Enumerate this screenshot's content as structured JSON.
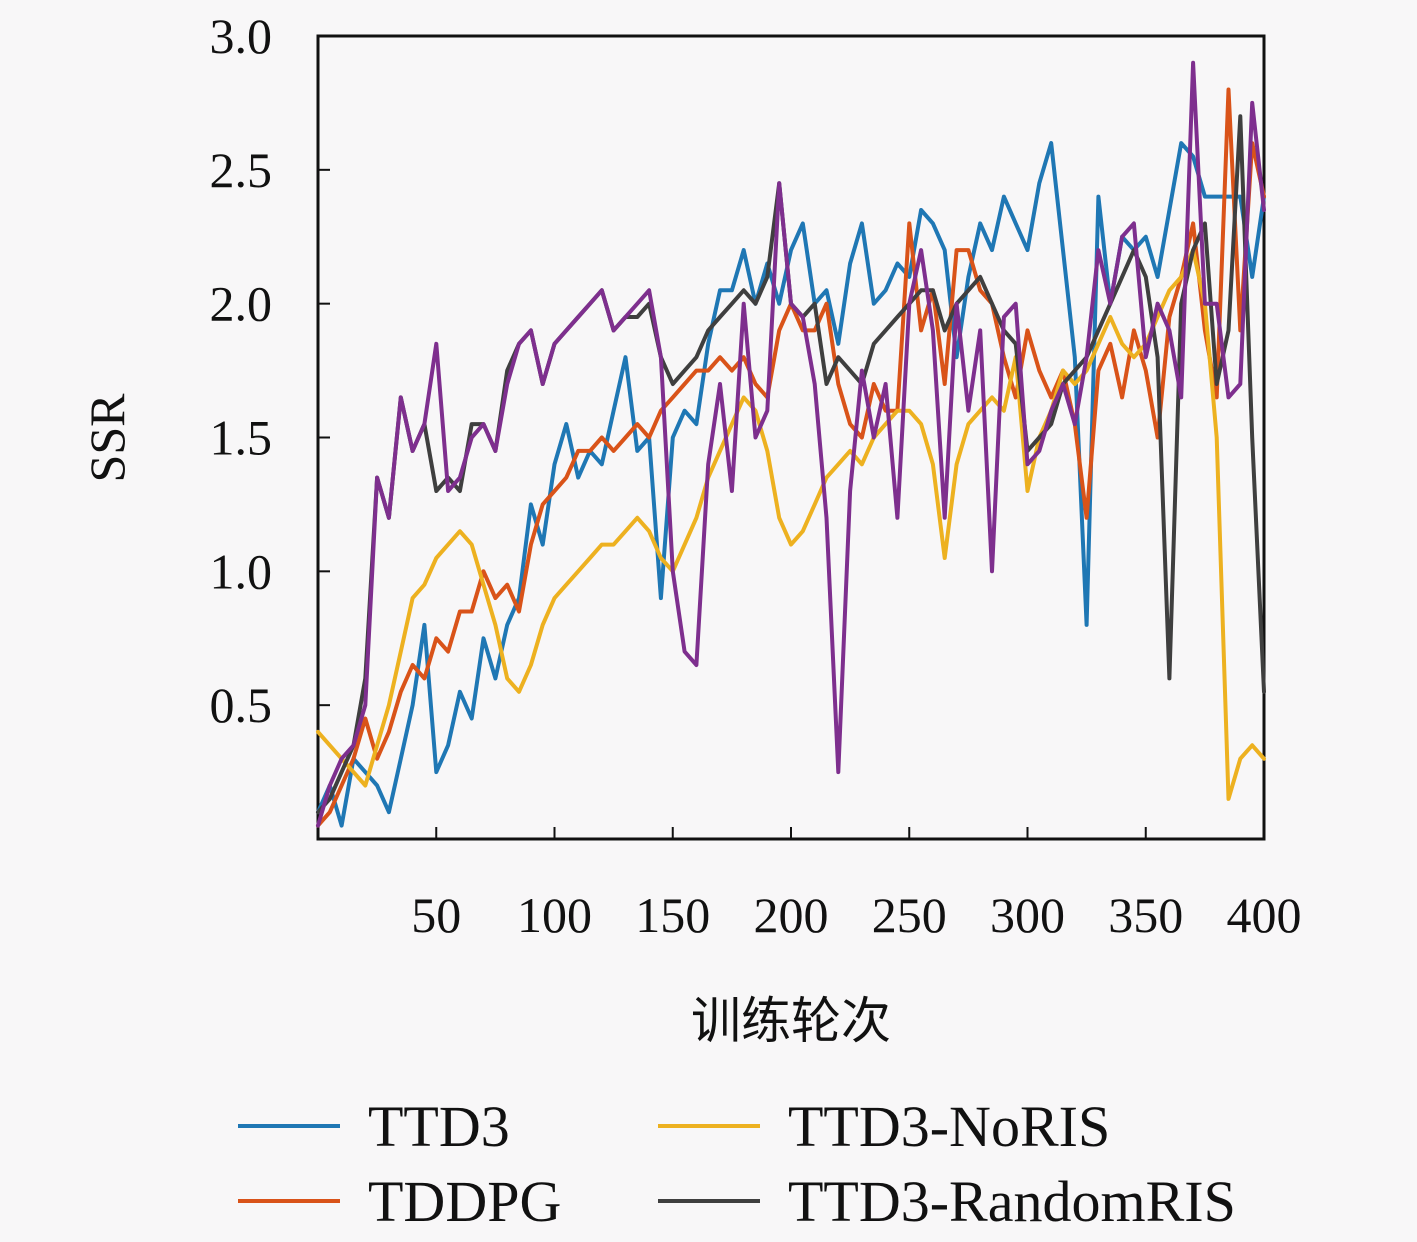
{
  "chart_data": {
    "type": "line",
    "xlabel": "训练轮次",
    "ylabel": "SSR",
    "xlim": [
      0,
      400
    ],
    "ylim": [
      0,
      3.0
    ],
    "xticks": [
      50,
      100,
      150,
      200,
      250,
      300,
      350,
      400
    ],
    "yticks": [
      0.5,
      1.0,
      1.5,
      2.0,
      2.5,
      3.0
    ],
    "xtick_labels": [
      "50",
      "100",
      "150",
      "200",
      "250",
      "300",
      "350",
      "400"
    ],
    "ytick_labels": [
      "0.5",
      "1.0",
      "1.5",
      "2.0",
      "2.5",
      "3.0"
    ],
    "grid": false,
    "legend_position": "bottom",
    "series": [
      {
        "name": "TTD3",
        "color": "#1f77b4",
        "x": [
          0,
          5,
          10,
          15,
          20,
          25,
          30,
          35,
          40,
          45,
          50,
          55,
          60,
          65,
          70,
          75,
          80,
          85,
          90,
          95,
          100,
          105,
          110,
          115,
          120,
          125,
          130,
          135,
          140,
          145,
          150,
          155,
          160,
          165,
          170,
          175,
          180,
          185,
          190,
          195,
          200,
          205,
          210,
          215,
          220,
          225,
          230,
          235,
          240,
          245,
          250,
          255,
          260,
          265,
          270,
          275,
          280,
          285,
          290,
          295,
          300,
          305,
          310,
          315,
          320,
          325,
          330,
          335,
          340,
          345,
          350,
          355,
          360,
          365,
          370,
          375,
          380,
          385,
          390,
          395,
          400
        ],
        "y": [
          0.1,
          0.2,
          0.05,
          0.3,
          0.25,
          0.2,
          0.1,
          0.3,
          0.5,
          0.8,
          0.25,
          0.35,
          0.55,
          0.45,
          0.75,
          0.6,
          0.8,
          0.9,
          1.25,
          1.1,
          1.4,
          1.55,
          1.35,
          1.45,
          1.4,
          1.6,
          1.8,
          1.45,
          1.5,
          0.9,
          1.5,
          1.6,
          1.55,
          1.85,
          2.05,
          2.05,
          2.2,
          2.0,
          2.15,
          2.0,
          2.2,
          2.3,
          2.0,
          2.05,
          1.85,
          2.15,
          2.3,
          2.0,
          2.05,
          2.15,
          2.1,
          2.35,
          2.3,
          2.2,
          1.8,
          2.1,
          2.3,
          2.2,
          2.4,
          2.3,
          2.2,
          2.45,
          2.6,
          2.2,
          1.8,
          0.8,
          2.4,
          2.0,
          2.25,
          2.2,
          2.25,
          2.1,
          2.35,
          2.6,
          2.55,
          2.4,
          2.4,
          2.4,
          2.4,
          2.1,
          2.4
        ]
      },
      {
        "name": "TDDPG",
        "color": "#d95319",
        "x": [
          0,
          5,
          10,
          15,
          20,
          25,
          30,
          35,
          40,
          45,
          50,
          55,
          60,
          65,
          70,
          75,
          80,
          85,
          90,
          95,
          100,
          105,
          110,
          115,
          120,
          125,
          130,
          135,
          140,
          145,
          150,
          155,
          160,
          165,
          170,
          175,
          180,
          185,
          190,
          195,
          200,
          205,
          210,
          215,
          220,
          225,
          230,
          235,
          240,
          245,
          250,
          255,
          260,
          265,
          270,
          275,
          280,
          285,
          290,
          295,
          300,
          305,
          310,
          315,
          320,
          325,
          330,
          335,
          340,
          345,
          350,
          355,
          360,
          365,
          370,
          375,
          380,
          385,
          390,
          395,
          400
        ],
        "y": [
          0.05,
          0.1,
          0.2,
          0.3,
          0.45,
          0.3,
          0.4,
          0.55,
          0.65,
          0.6,
          0.75,
          0.7,
          0.85,
          0.85,
          1.0,
          0.9,
          0.95,
          0.85,
          1.1,
          1.25,
          1.3,
          1.35,
          1.45,
          1.45,
          1.5,
          1.45,
          1.5,
          1.55,
          1.5,
          1.6,
          1.65,
          1.7,
          1.75,
          1.75,
          1.8,
          1.75,
          1.8,
          1.7,
          1.65,
          1.9,
          2.0,
          1.9,
          1.9,
          2.0,
          1.7,
          1.55,
          1.5,
          1.7,
          1.6,
          1.6,
          2.3,
          1.9,
          2.05,
          1.7,
          2.2,
          2.2,
          2.05,
          2.0,
          1.8,
          1.65,
          1.9,
          1.75,
          1.65,
          1.75,
          1.55,
          1.2,
          1.75,
          1.85,
          1.65,
          1.9,
          1.75,
          1.5,
          1.95,
          2.1,
          2.3,
          1.9,
          1.65,
          2.8,
          1.9,
          2.6,
          2.4
        ]
      },
      {
        "name": "TTD3-NoRIS",
        "color": "#edb120",
        "x": [
          0,
          5,
          10,
          15,
          20,
          25,
          30,
          35,
          40,
          45,
          50,
          55,
          60,
          65,
          70,
          75,
          80,
          85,
          90,
          95,
          100,
          105,
          110,
          115,
          120,
          125,
          130,
          135,
          140,
          145,
          150,
          155,
          160,
          165,
          170,
          175,
          180,
          185,
          190,
          195,
          200,
          205,
          210,
          215,
          220,
          225,
          230,
          235,
          240,
          245,
          250,
          255,
          260,
          265,
          270,
          275,
          280,
          285,
          290,
          295,
          300,
          305,
          310,
          315,
          320,
          325,
          330,
          335,
          340,
          345,
          350,
          355,
          360,
          365,
          370,
          375,
          380,
          385,
          390,
          395,
          400
        ],
        "y": [
          0.4,
          0.35,
          0.3,
          0.25,
          0.2,
          0.35,
          0.5,
          0.7,
          0.9,
          0.95,
          1.05,
          1.1,
          1.15,
          1.1,
          0.95,
          0.8,
          0.6,
          0.55,
          0.65,
          0.8,
          0.9,
          0.95,
          1.0,
          1.05,
          1.1,
          1.1,
          1.15,
          1.2,
          1.15,
          1.05,
          1.0,
          1.1,
          1.2,
          1.35,
          1.45,
          1.55,
          1.65,
          1.6,
          1.45,
          1.2,
          1.1,
          1.15,
          1.25,
          1.35,
          1.4,
          1.45,
          1.4,
          1.5,
          1.55,
          1.6,
          1.6,
          1.55,
          1.4,
          1.05,
          1.4,
          1.55,
          1.6,
          1.65,
          1.6,
          1.8,
          1.3,
          1.5,
          1.6,
          1.75,
          1.7,
          1.75,
          1.85,
          1.95,
          1.85,
          1.8,
          1.85,
          1.95,
          2.05,
          2.1,
          2.2,
          2.0,
          1.5,
          0.15,
          0.3,
          0.35,
          0.3
        ]
      },
      {
        "name": "TTD3-RandomRIS",
        "color": "#3f3f3f",
        "x": [
          0,
          5,
          10,
          15,
          20,
          25,
          30,
          35,
          40,
          45,
          50,
          55,
          60,
          65,
          70,
          75,
          80,
          85,
          90,
          95,
          100,
          105,
          110,
          115,
          120,
          125,
          130,
          135,
          140,
          145,
          150,
          155,
          160,
          165,
          170,
          175,
          180,
          185,
          190,
          195,
          200,
          205,
          210,
          215,
          220,
          225,
          230,
          235,
          240,
          245,
          250,
          255,
          260,
          265,
          270,
          275,
          280,
          285,
          290,
          295,
          300,
          305,
          310,
          315,
          320,
          325,
          330,
          335,
          340,
          345,
          350,
          355,
          360,
          365,
          370,
          375,
          380,
          385,
          390,
          395,
          400
        ],
        "y": [
          0.1,
          0.15,
          0.25,
          0.35,
          0.6,
          1.35,
          1.2,
          1.65,
          1.45,
          1.55,
          1.3,
          1.35,
          1.3,
          1.55,
          1.55,
          1.45,
          1.75,
          1.85,
          1.9,
          1.7,
          1.85,
          1.9,
          1.95,
          2.0,
          2.05,
          1.9,
          1.95,
          1.95,
          2.0,
          1.8,
          1.7,
          1.75,
          1.8,
          1.9,
          1.95,
          2.0,
          2.05,
          2.0,
          2.1,
          2.45,
          2.0,
          1.95,
          2.0,
          1.7,
          1.8,
          1.75,
          1.7,
          1.85,
          1.9,
          1.95,
          2.0,
          2.05,
          2.05,
          1.9,
          2.0,
          2.05,
          2.1,
          2.0,
          1.9,
          1.85,
          1.45,
          1.5,
          1.55,
          1.7,
          1.75,
          1.8,
          1.9,
          2.0,
          2.1,
          2.2,
          2.1,
          1.8,
          0.6,
          2.0,
          2.2,
          2.3,
          1.7,
          1.9,
          2.7,
          1.5,
          0.55
        ]
      },
      {
        "name": "",
        "color": "#7e2f8e",
        "x": [
          0,
          5,
          10,
          15,
          20,
          25,
          30,
          35,
          40,
          45,
          50,
          55,
          60,
          65,
          70,
          75,
          80,
          85,
          90,
          95,
          100,
          105,
          110,
          115,
          120,
          125,
          130,
          135,
          140,
          145,
          150,
          155,
          160,
          165,
          170,
          175,
          180,
          185,
          190,
          195,
          200,
          205,
          210,
          215,
          220,
          225,
          230,
          235,
          240,
          245,
          250,
          255,
          260,
          265,
          270,
          275,
          280,
          285,
          290,
          295,
          300,
          305,
          310,
          315,
          320,
          325,
          330,
          335,
          340,
          345,
          350,
          355,
          360,
          365,
          370,
          375,
          380,
          385,
          390,
          395,
          400
        ],
        "y": [
          0.05,
          0.2,
          0.3,
          0.35,
          0.5,
          1.35,
          1.2,
          1.65,
          1.45,
          1.55,
          1.85,
          1.3,
          1.35,
          1.5,
          1.55,
          1.45,
          1.7,
          1.85,
          1.9,
          1.7,
          1.85,
          1.9,
          1.95,
          2.0,
          2.05,
          1.9,
          1.95,
          2.0,
          2.05,
          1.8,
          1.0,
          0.7,
          0.65,
          1.4,
          1.7,
          1.3,
          2.0,
          1.5,
          1.6,
          2.45,
          2.0,
          1.95,
          1.7,
          1.2,
          0.25,
          1.3,
          1.75,
          1.5,
          1.7,
          1.2,
          2.0,
          2.2,
          1.9,
          1.2,
          2.0,
          1.6,
          1.9,
          1.0,
          1.95,
          2.0,
          1.4,
          1.45,
          1.6,
          1.7,
          1.55,
          1.8,
          2.2,
          2.0,
          2.25,
          2.3,
          1.8,
          2.0,
          1.9,
          1.65,
          2.9,
          2.0,
          2.0,
          1.65,
          1.7,
          2.75,
          2.35
        ]
      }
    ]
  }
}
